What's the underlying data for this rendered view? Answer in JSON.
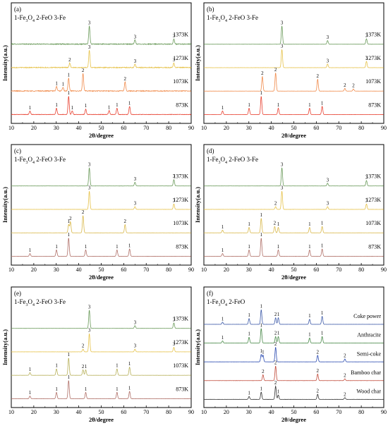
{
  "figure": {
    "x_axis_label": "2θ/degree",
    "y_axis_label": "Intensity(a.u.)",
    "x_ticks": [
      10,
      20,
      30,
      40,
      50,
      60,
      70,
      80,
      90
    ]
  },
  "chart_data": [
    {
      "panel": "(a)",
      "type": "line",
      "legend": "1-Fe3O4  2-FeO  3-Fe",
      "xlabel": "2θ/degree",
      "ylabel": "Intensity(a.u.)",
      "xlim": [
        10,
        90
      ],
      "series": [
        {
          "name": "1373K",
          "color": "#6a9a5a",
          "noise": 1.0,
          "peaks": [
            {
              "x": 44.7,
              "h": 1.0,
              "label": "3"
            },
            {
              "x": 65.0,
              "h": 0.22,
              "label": "3"
            },
            {
              "x": 82.3,
              "h": 0.28,
              "label": "3"
            }
          ]
        },
        {
          "name": "1273K",
          "color": "#e6c24a",
          "noise": 1.0,
          "peaks": [
            {
              "x": 36.0,
              "h": 0.25,
              "label": "2"
            },
            {
              "x": 44.7,
              "h": 0.95,
              "label": "3"
            },
            {
              "x": 65.0,
              "h": 0.18,
              "label": "3"
            },
            {
              "x": 82.3,
              "h": 0.25,
              "label": "3"
            }
          ]
        },
        {
          "name": "1073K",
          "color": "#f08a4a",
          "noise": 1.0,
          "peaks": [
            {
              "x": 30.1,
              "h": 0.25,
              "label": "1"
            },
            {
              "x": 33.0,
              "h": 0.2,
              "label": "1"
            },
            {
              "x": 35.5,
              "h": 0.7,
              "label": "1"
            },
            {
              "x": 41.9,
              "h": 0.95,
              "label": "2"
            },
            {
              "x": 60.6,
              "h": 0.5,
              "label": "2"
            }
          ]
        },
        {
          "name": "873K",
          "color": "#e84030",
          "noise": 0.5,
          "peaks": [
            {
              "x": 18.3,
              "h": 0.2,
              "label": "1"
            },
            {
              "x": 30.1,
              "h": 0.35,
              "label": "1"
            },
            {
              "x": 35.5,
              "h": 1.0,
              "label": "1"
            },
            {
              "x": 37.1,
              "h": 0.2,
              "label": "1"
            },
            {
              "x": 43.1,
              "h": 0.3,
              "label": "1"
            },
            {
              "x": 53.5,
              "h": 0.22,
              "label": "1"
            },
            {
              "x": 57.0,
              "h": 0.35,
              "label": "1"
            },
            {
              "x": 62.6,
              "h": 0.45,
              "label": "1"
            }
          ]
        }
      ]
    },
    {
      "panel": "(b)",
      "type": "line",
      "legend": "1-Fe3O4  2-FeO  3-Fe",
      "xlabel": "2θ/degree",
      "ylabel": "Intensity(a.u.)",
      "xlim": [
        10,
        90
      ],
      "series": [
        {
          "name": "1373K",
          "color": "#6a9a5a",
          "noise": 0.15,
          "peaks": [
            {
              "x": 44.7,
              "h": 1.0,
              "label": "3"
            },
            {
              "x": 65.0,
              "h": 0.2,
              "label": "3"
            },
            {
              "x": 82.3,
              "h": 0.3,
              "label": "3"
            }
          ]
        },
        {
          "name": "1273K",
          "color": "#e6c24a",
          "noise": 0.15,
          "peaks": [
            {
              "x": 44.7,
              "h": 1.0,
              "label": "3"
            },
            {
              "x": 65.0,
              "h": 0.2,
              "label": "3"
            },
            {
              "x": 82.3,
              "h": 0.35,
              "label": "3"
            }
          ]
        },
        {
          "name": "1073K",
          "color": "#f08a4a",
          "noise": 0.15,
          "peaks": [
            {
              "x": 36.0,
              "h": 0.8,
              "label": "2"
            },
            {
              "x": 41.9,
              "h": 1.0,
              "label": "2"
            },
            {
              "x": 60.6,
              "h": 0.65,
              "label": "2"
            },
            {
              "x": 72.7,
              "h": 0.15,
              "label": "2"
            },
            {
              "x": 76.5,
              "h": 0.12,
              "label": "2"
            }
          ]
        },
        {
          "name": "873K",
          "color": "#e84030",
          "noise": 0.15,
          "peaks": [
            {
              "x": 18.3,
              "h": 0.2,
              "label": "1"
            },
            {
              "x": 30.1,
              "h": 0.35,
              "label": "1"
            },
            {
              "x": 35.5,
              "h": 1.0,
              "label": "1"
            },
            {
              "x": 43.1,
              "h": 0.35,
              "label": "1"
            },
            {
              "x": 57.0,
              "h": 0.35,
              "label": "1"
            },
            {
              "x": 62.6,
              "h": 0.45,
              "label": "1"
            }
          ]
        }
      ]
    },
    {
      "panel": "(c)",
      "type": "line",
      "legend": "1-Fe3O4  2-FeO  3-Fe",
      "xlabel": "2θ/degree",
      "ylabel": "Intensity(a.u.)",
      "xlim": [
        10,
        90
      ],
      "series": [
        {
          "name": "1373K",
          "color": "#6a9a5a",
          "noise": 0.15,
          "peaks": [
            {
              "x": 44.7,
              "h": 1.0,
              "label": "3"
            },
            {
              "x": 65.0,
              "h": 0.2,
              "label": "3"
            },
            {
              "x": 82.3,
              "h": 0.35,
              "label": "3"
            }
          ]
        },
        {
          "name": "1273K",
          "color": "#e6c24a",
          "noise": 0.15,
          "peaks": [
            {
              "x": 44.7,
              "h": 1.0,
              "label": "3"
            },
            {
              "x": 65.0,
              "h": 0.15,
              "label": "3"
            },
            {
              "x": 82.3,
              "h": 0.3,
              "label": "3"
            }
          ]
        },
        {
          "name": "1073K",
          "color": "#d9b84a",
          "noise": 0.15,
          "peaks": [
            {
              "x": 35.5,
              "h": 0.45,
              "label": "1"
            },
            {
              "x": 36.3,
              "h": 0.6,
              "label": "2"
            },
            {
              "x": 41.9,
              "h": 0.95,
              "label": "2"
            },
            {
              "x": 60.6,
              "h": 0.45,
              "label": "2"
            }
          ]
        },
        {
          "name": "873K",
          "color": "#b07068",
          "noise": 0.15,
          "peaks": [
            {
              "x": 18.3,
              "h": 0.15,
              "label": "1"
            },
            {
              "x": 30.1,
              "h": 0.35,
              "label": "1"
            },
            {
              "x": 35.5,
              "h": 1.0,
              "label": "1"
            },
            {
              "x": 43.1,
              "h": 0.35,
              "label": "1"
            },
            {
              "x": 57.0,
              "h": 0.35,
              "label": "1"
            },
            {
              "x": 62.6,
              "h": 0.4,
              "label": "1"
            }
          ]
        }
      ]
    },
    {
      "panel": "(d)",
      "type": "line",
      "legend": "1-Fe3O4  2-FeO  3-Fe",
      "xlabel": "2θ/degree",
      "ylabel": "Intensity(a.u.)",
      "xlim": [
        10,
        90
      ],
      "series": [
        {
          "name": "1373K",
          "color": "#6a9a5a",
          "noise": 0.15,
          "peaks": [
            {
              "x": 44.7,
              "h": 1.0,
              "label": "3"
            },
            {
              "x": 65.0,
              "h": 0.15,
              "label": "3"
            },
            {
              "x": 82.3,
              "h": 0.3,
              "label": "3"
            }
          ]
        },
        {
          "name": "1273K",
          "color": "#e6c24a",
          "noise": 0.15,
          "peaks": [
            {
              "x": 41.9,
              "h": 0.15,
              "label": "2"
            },
            {
              "x": 44.7,
              "h": 1.0,
              "label": "3"
            },
            {
              "x": 65.0,
              "h": 0.15,
              "label": "3"
            },
            {
              "x": 82.3,
              "h": 0.3,
              "label": "3"
            }
          ]
        },
        {
          "name": "1073K",
          "color": "#d9b84a",
          "noise": 0.15,
          "peaks": [
            {
              "x": 18.3,
              "h": 0.15,
              "label": "1"
            },
            {
              "x": 30.1,
              "h": 0.3,
              "label": "1"
            },
            {
              "x": 35.5,
              "h": 0.8,
              "label": "1"
            },
            {
              "x": 41.5,
              "h": 0.35,
              "label": "2"
            },
            {
              "x": 43.1,
              "h": 0.3,
              "label": "1"
            },
            {
              "x": 57.0,
              "h": 0.3,
              "label": "1"
            },
            {
              "x": 62.6,
              "h": 0.35,
              "label": "1"
            }
          ]
        },
        {
          "name": "873K",
          "color": "#b07068",
          "noise": 0.15,
          "peaks": [
            {
              "x": 18.3,
              "h": 0.15,
              "label": "1"
            },
            {
              "x": 30.1,
              "h": 0.35,
              "label": "1"
            },
            {
              "x": 35.5,
              "h": 1.0,
              "label": "1"
            },
            {
              "x": 43.1,
              "h": 0.35,
              "label": "1"
            },
            {
              "x": 57.0,
              "h": 0.35,
              "label": "1"
            },
            {
              "x": 62.6,
              "h": 0.4,
              "label": "1"
            }
          ]
        }
      ]
    },
    {
      "panel": "(e)",
      "type": "line",
      "legend": "1-Fe3O4  2-FeO  3-Fe",
      "xlabel": "2θ/degree",
      "ylabel": "Intensity(a.u.)",
      "xlim": [
        10,
        90
      ],
      "series": [
        {
          "name": "1373K",
          "color": "#6a9a5a",
          "noise": 0.15,
          "peaks": [
            {
              "x": 44.7,
              "h": 1.0,
              "label": "3"
            },
            {
              "x": 65.0,
              "h": 0.15,
              "label": "3"
            },
            {
              "x": 82.3,
              "h": 0.3,
              "label": "3"
            }
          ]
        },
        {
          "name": "1273K",
          "color": "#e6c24a",
          "noise": 0.15,
          "peaks": [
            {
              "x": 41.9,
              "h": 0.15,
              "label": "2"
            },
            {
              "x": 44.7,
              "h": 1.0,
              "label": "3"
            },
            {
              "x": 65.0,
              "h": 0.15,
              "label": "3"
            },
            {
              "x": 82.3,
              "h": 0.25,
              "label": "3"
            }
          ]
        },
        {
          "name": "1073K",
          "color": "#b7b05a",
          "noise": 0.15,
          "peaks": [
            {
              "x": 18.3,
              "h": 0.15,
              "label": "1"
            },
            {
              "x": 30.1,
              "h": 0.35,
              "label": "1"
            },
            {
              "x": 35.5,
              "h": 0.95,
              "label": "1"
            },
            {
              "x": 41.9,
              "h": 0.3,
              "label": "2"
            },
            {
              "x": 43.1,
              "h": 0.3,
              "label": "1"
            },
            {
              "x": 57.0,
              "h": 0.35,
              "label": "1"
            },
            {
              "x": 62.6,
              "h": 0.45,
              "label": "1"
            }
          ]
        },
        {
          "name": "873K",
          "color": "#b07068",
          "noise": 0.15,
          "peaks": [
            {
              "x": 18.3,
              "h": 0.15,
              "label": "1"
            },
            {
              "x": 30.1,
              "h": 0.35,
              "label": "1"
            },
            {
              "x": 35.5,
              "h": 1.0,
              "label": "1"
            },
            {
              "x": 43.1,
              "h": 0.35,
              "label": "1"
            },
            {
              "x": 57.0,
              "h": 0.35,
              "label": "1"
            },
            {
              "x": 62.6,
              "h": 0.4,
              "label": "1"
            }
          ]
        }
      ]
    },
    {
      "panel": "(f)",
      "type": "line",
      "legend": "1-Fe3O4  2-FeO",
      "xlabel": "2θ/degree",
      "ylabel": "Intensity(a.u.)",
      "xlim": [
        10,
        90
      ],
      "series": [
        {
          "name": "Coke power",
          "color": "#3d5aa8",
          "noise": 0.15,
          "peaks": [
            {
              "x": 18.3,
              "h": 0.15,
              "label": "1"
            },
            {
              "x": 30.1,
              "h": 0.4,
              "label": "1"
            },
            {
              "x": 35.5,
              "h": 1.0,
              "label": "1"
            },
            {
              "x": 41.9,
              "h": 0.45,
              "label": "2"
            },
            {
              "x": 43.1,
              "h": 0.45,
              "label": "1"
            },
            {
              "x": 57.0,
              "h": 0.35,
              "label": "1"
            },
            {
              "x": 62.6,
              "h": 0.55,
              "label": "1"
            }
          ]
        },
        {
          "name": "Anthracite",
          "color": "#4a8a4a",
          "noise": 0.15,
          "peaks": [
            {
              "x": 18.3,
              "h": 0.15,
              "label": "1"
            },
            {
              "x": 30.1,
              "h": 0.4,
              "label": "1"
            },
            {
              "x": 35.5,
              "h": 1.0,
              "label": "1"
            },
            {
              "x": 41.9,
              "h": 0.45,
              "label": "2"
            },
            {
              "x": 43.1,
              "h": 0.45,
              "label": "1"
            },
            {
              "x": 57.0,
              "h": 0.35,
              "label": "1"
            },
            {
              "x": 62.6,
              "h": 0.45,
              "label": "1"
            }
          ]
        },
        {
          "name": "Semi-coke",
          "color": "#2a4ab0",
          "noise": 0.15,
          "peaks": [
            {
              "x": 35.5,
              "h": 0.5,
              "label": "1"
            },
            {
              "x": 36.3,
              "h": 0.45,
              "label": "1"
            },
            {
              "x": 41.9,
              "h": 1.0,
              "label": "2"
            },
            {
              "x": 60.6,
              "h": 0.45,
              "label": "2"
            },
            {
              "x": 72.7,
              "h": 0.2,
              "label": "2"
            }
          ]
        },
        {
          "name": "Bamboo char",
          "color": "#c04a3a",
          "noise": 0.15,
          "peaks": [
            {
              "x": 36.3,
              "h": 0.4,
              "label": "2"
            },
            {
              "x": 41.9,
              "h": 1.0,
              "label": "2"
            },
            {
              "x": 60.6,
              "h": 0.45,
              "label": "2"
            },
            {
              "x": 72.7,
              "h": 0.12,
              "label": "2"
            }
          ]
        },
        {
          "name": "Wood char",
          "color": "#333333",
          "noise": 0.15,
          "peaks": [
            {
              "x": 30.1,
              "h": 0.2,
              "label": "1"
            },
            {
              "x": 35.5,
              "h": 0.5,
              "label": "1"
            },
            {
              "x": 41.9,
              "h": 0.9,
              "label": "2"
            },
            {
              "x": 43.1,
              "h": 0.3,
              "label": "1"
            },
            {
              "x": 60.6,
              "h": 0.35,
              "label": "2"
            },
            {
              "x": 72.7,
              "h": 0.12,
              "label": "2"
            }
          ]
        }
      ]
    }
  ]
}
